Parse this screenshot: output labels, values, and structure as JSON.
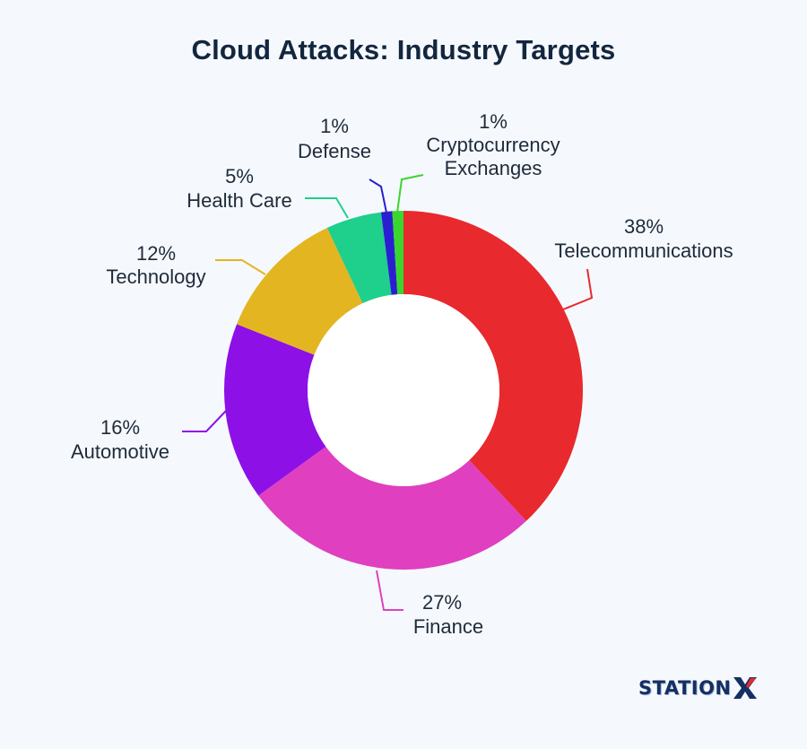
{
  "chart_data": {
    "type": "pie",
    "title": "Cloud Attacks: Industry Targets",
    "donut": true,
    "slices": [
      {
        "label": "Telecommunications",
        "value": 38,
        "value_text": "38%",
        "color": "#e8292d"
      },
      {
        "label": "Finance",
        "value": 27,
        "value_text": "27%",
        "color": "#e03fbf"
      },
      {
        "label": "Automotive",
        "value": 16,
        "value_text": "16%",
        "color": "#8d10e6"
      },
      {
        "label": "Technology",
        "value": 12,
        "value_text": "12%",
        "color": "#e3b520"
      },
      {
        "label": "Health Care",
        "value": 5,
        "value_text": "5%",
        "color": "#1fcf8c"
      },
      {
        "label": "Defense",
        "value": 1,
        "value_text": "1%",
        "color": "#2a1fd0"
      },
      {
        "label": "Cryptocurrency Exchanges",
        "value": 1,
        "value_text": "1%",
        "color": "#3ad62e"
      }
    ]
  },
  "brand": {
    "logo_text": "STATIONX",
    "logo_prefix": "STATION",
    "logo_suffix": "X"
  }
}
